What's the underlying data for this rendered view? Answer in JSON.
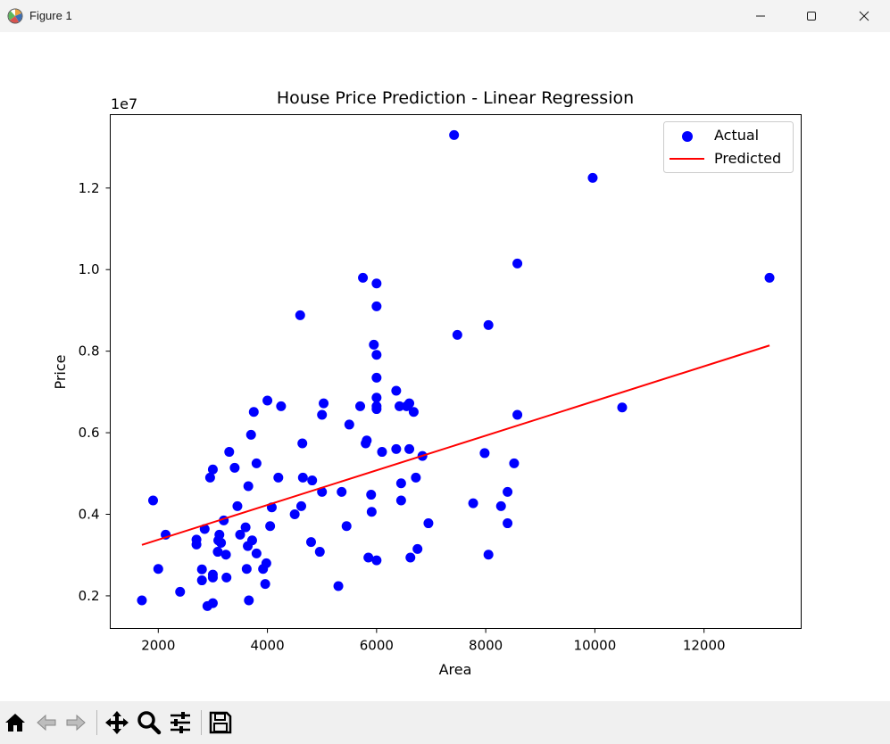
{
  "window": {
    "title": "Figure 1",
    "app_icon": "matplotlib-icon",
    "controls": [
      "minimize-icon",
      "maximize-icon",
      "close-icon"
    ]
  },
  "toolbar": {
    "buttons": [
      "home-icon",
      "back-icon",
      "forward-icon",
      "pan-icon",
      "zoom-icon",
      "configure-subplots-icon",
      "save-icon"
    ]
  },
  "chart_data": {
    "type": "scatter",
    "title": "House Price Prediction - Linear Regression",
    "xlabel": "Area",
    "ylabel": "Price",
    "y_offset_label": "1e7",
    "xlim": [
      1120,
      13780
    ],
    "ylim": [
      1.2,
      13.8
    ],
    "y_scale_note": "y values in units of 1e7 / 10 (i.e. millions)",
    "x_ticks": [
      2000,
      4000,
      6000,
      8000,
      10000,
      12000
    ],
    "x_tick_labels": [
      "2000",
      "4000",
      "6000",
      "8000",
      "10000",
      "12000"
    ],
    "y_ticks": [
      2,
      4,
      6,
      8,
      10,
      12
    ],
    "y_tick_labels": [
      "0.2",
      "0.4",
      "0.6",
      "0.8",
      "1.0",
      "1.2"
    ],
    "grid": false,
    "legend": {
      "placement": "top-right",
      "entries": [
        "Actual",
        "Predicted"
      ]
    },
    "colors": {
      "actual": "#0000ff",
      "predicted": "#ff0000"
    },
    "series": [
      {
        "name": "Actual",
        "kind": "scatter",
        "points": [
          [
            1700,
            1.89
          ],
          [
            1905,
            4.34
          ],
          [
            2000,
            2.66
          ],
          [
            2135,
            3.5
          ],
          [
            2400,
            2.1
          ],
          [
            2700,
            3.38
          ],
          [
            2700,
            3.26
          ],
          [
            2800,
            2.65
          ],
          [
            2800,
            2.38
          ],
          [
            2850,
            3.64
          ],
          [
            2900,
            1.75
          ],
          [
            2950,
            4.9
          ],
          [
            3000,
            5.1
          ],
          [
            3000,
            1.82
          ],
          [
            3000,
            2.52
          ],
          [
            3000,
            2.45
          ],
          [
            3090,
            3.08
          ],
          [
            3100,
            3.36
          ],
          [
            3120,
            3.5
          ],
          [
            3150,
            3.3
          ],
          [
            3200,
            3.85
          ],
          [
            3240,
            3.01
          ],
          [
            3250,
            2.45
          ],
          [
            3300,
            5.53
          ],
          [
            3400,
            5.14
          ],
          [
            3450,
            4.2
          ],
          [
            3500,
            3.5
          ],
          [
            3600,
            3.68
          ],
          [
            3620,
            2.66
          ],
          [
            3640,
            3.22
          ],
          [
            3650,
            4.69
          ],
          [
            3660,
            1.89
          ],
          [
            3700,
            5.95
          ],
          [
            3720,
            3.36
          ],
          [
            3750,
            6.51
          ],
          [
            3800,
            3.04
          ],
          [
            3800,
            5.25
          ],
          [
            3920,
            2.66
          ],
          [
            3960,
            2.29
          ],
          [
            3980,
            2.8
          ],
          [
            4000,
            6.79
          ],
          [
            4050,
            3.71
          ],
          [
            4080,
            4.17
          ],
          [
            4200,
            4.9
          ],
          [
            4250,
            6.65
          ],
          [
            4500,
            4.0
          ],
          [
            4620,
            4.2
          ],
          [
            4640,
            5.74
          ],
          [
            4650,
            4.9
          ],
          [
            4600,
            8.88
          ],
          [
            4800,
            3.32
          ],
          [
            4820,
            4.83
          ],
          [
            4960,
            3.08
          ],
          [
            5000,
            4.55
          ],
          [
            5000,
            6.44
          ],
          [
            5030,
            6.72
          ],
          [
            5300,
            2.24
          ],
          [
            5360,
            4.55
          ],
          [
            5450,
            3.71
          ],
          [
            5500,
            6.2
          ],
          [
            5700,
            6.65
          ],
          [
            5750,
            9.8
          ],
          [
            5800,
            5.74
          ],
          [
            5820,
            5.81
          ],
          [
            5850,
            2.94
          ],
          [
            5900,
            4.48
          ],
          [
            5910,
            4.06
          ],
          [
            5950,
            8.16
          ],
          [
            6000,
            9.66
          ],
          [
            6000,
            9.1
          ],
          [
            6000,
            7.91
          ],
          [
            6000,
            7.35
          ],
          [
            6000,
            6.86
          ],
          [
            6000,
            6.65
          ],
          [
            6000,
            6.58
          ],
          [
            6000,
            2.87
          ],
          [
            6100,
            5.53
          ],
          [
            6360,
            7.03
          ],
          [
            6360,
            5.6
          ],
          [
            6420,
            6.65
          ],
          [
            6450,
            4.34
          ],
          [
            6450,
            4.76
          ],
          [
            6550,
            6.65
          ],
          [
            6600,
            6.72
          ],
          [
            6600,
            5.6
          ],
          [
            6620,
            2.94
          ],
          [
            6680,
            6.51
          ],
          [
            6720,
            4.9
          ],
          [
            6750,
            3.15
          ],
          [
            6840,
            5.43
          ],
          [
            6950,
            3.78
          ],
          [
            7420,
            13.3
          ],
          [
            7480,
            8.4
          ],
          [
            7770,
            4.27
          ],
          [
            7980,
            5.5
          ],
          [
            8050,
            8.64
          ],
          [
            8050,
            3.01
          ],
          [
            8280,
            4.2
          ],
          [
            8400,
            4.55
          ],
          [
            8400,
            3.78
          ],
          [
            8520,
            5.25
          ],
          [
            8580,
            10.15
          ],
          [
            8580,
            6.44
          ],
          [
            9960,
            12.25
          ],
          [
            10500,
            6.62
          ],
          [
            13200,
            9.8
          ]
        ]
      },
      {
        "name": "Predicted",
        "kind": "line",
        "points": [
          [
            1700,
            3.25
          ],
          [
            13200,
            8.14
          ]
        ]
      }
    ]
  }
}
